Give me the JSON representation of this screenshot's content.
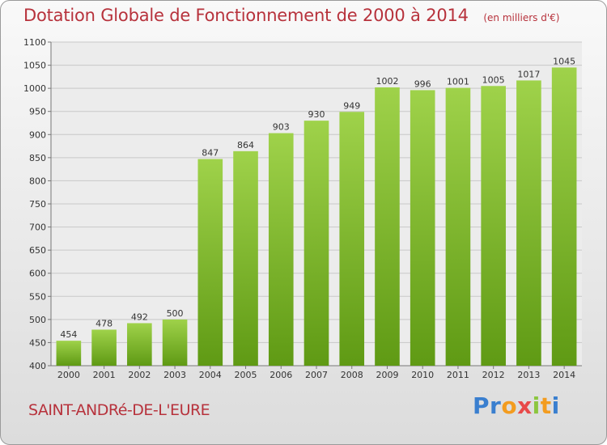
{
  "chart_data": {
    "type": "bar",
    "title": "Dotation Globale de Fonctionnement de 2000 à 2014",
    "subtitle": "(en milliers d'€)",
    "categories": [
      "2000",
      "2001",
      "2002",
      "2003",
      "2004",
      "2005",
      "2006",
      "2007",
      "2008",
      "2009",
      "2010",
      "2011",
      "2012",
      "2013",
      "2014"
    ],
    "values": [
      454,
      478,
      492,
      500,
      847,
      864,
      903,
      930,
      949,
      1002,
      996,
      1001,
      1005,
      1017,
      1045
    ],
    "ylim": [
      400,
      1100
    ],
    "yticks": [
      400,
      450,
      500,
      550,
      600,
      650,
      700,
      750,
      800,
      850,
      900,
      950,
      1000,
      1050,
      1100
    ],
    "xlabel": "",
    "ylabel": "",
    "grid": true,
    "bar_color": "#7fb52a"
  },
  "commune": "SAINT-ANDRé-DE-L'EURE",
  "logo": {
    "letters": [
      "P",
      "r",
      "o",
      "x",
      "i",
      "t",
      "i"
    ]
  }
}
